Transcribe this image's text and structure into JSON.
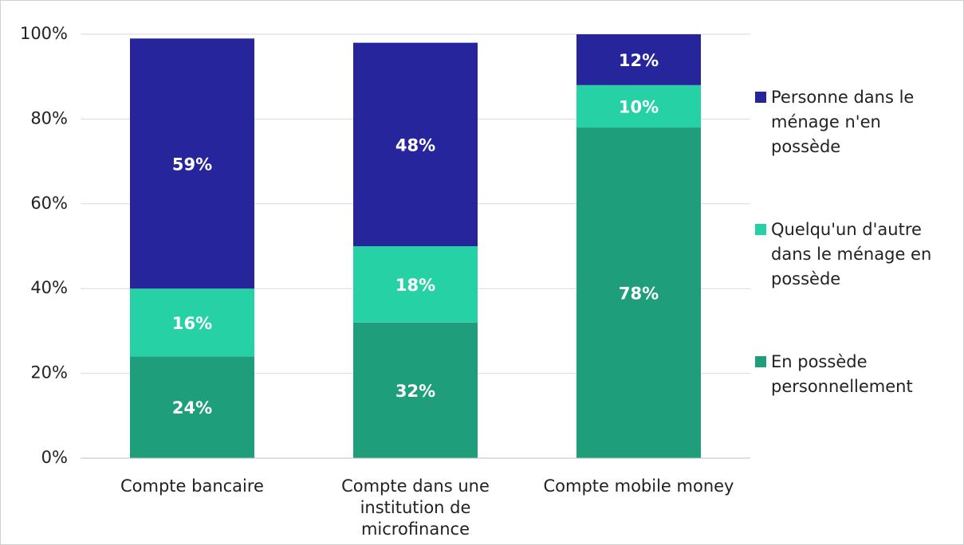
{
  "chart_data": {
    "type": "stacked_bar",
    "categories": [
      "Compte bancaire",
      "Compte dans une institution de microfinance",
      "Compte mobile money"
    ],
    "series": [
      {
        "name": "En possède personnellement",
        "color": "#1f9e7b",
        "values": [
          24,
          32,
          78
        ],
        "value_labels": [
          "24%",
          "32%",
          "78%"
        ]
      },
      {
        "name": "Quelqu'un d'autre dans le ménage en possède",
        "color": "#26d1a6",
        "values": [
          16,
          18,
          10
        ],
        "value_labels": [
          "16%",
          "18%",
          "10%"
        ]
      },
      {
        "name": "Personne dans le ménage n'en possède",
        "color": "#27259b",
        "values": [
          59,
          48,
          12
        ],
        "value_labels": [
          "59%",
          "48%",
          "12%"
        ]
      }
    ],
    "ylim": [
      0,
      100
    ],
    "yticks": [
      {
        "value": 0,
        "label": "0%"
      },
      {
        "value": 20,
        "label": "20%"
      },
      {
        "value": 40,
        "label": "40%"
      },
      {
        "value": 60,
        "label": "60%"
      },
      {
        "value": 80,
        "label": "80%"
      },
      {
        "value": 100,
        "label": "100%"
      }
    ],
    "grid": true,
    "legend": "right"
  }
}
